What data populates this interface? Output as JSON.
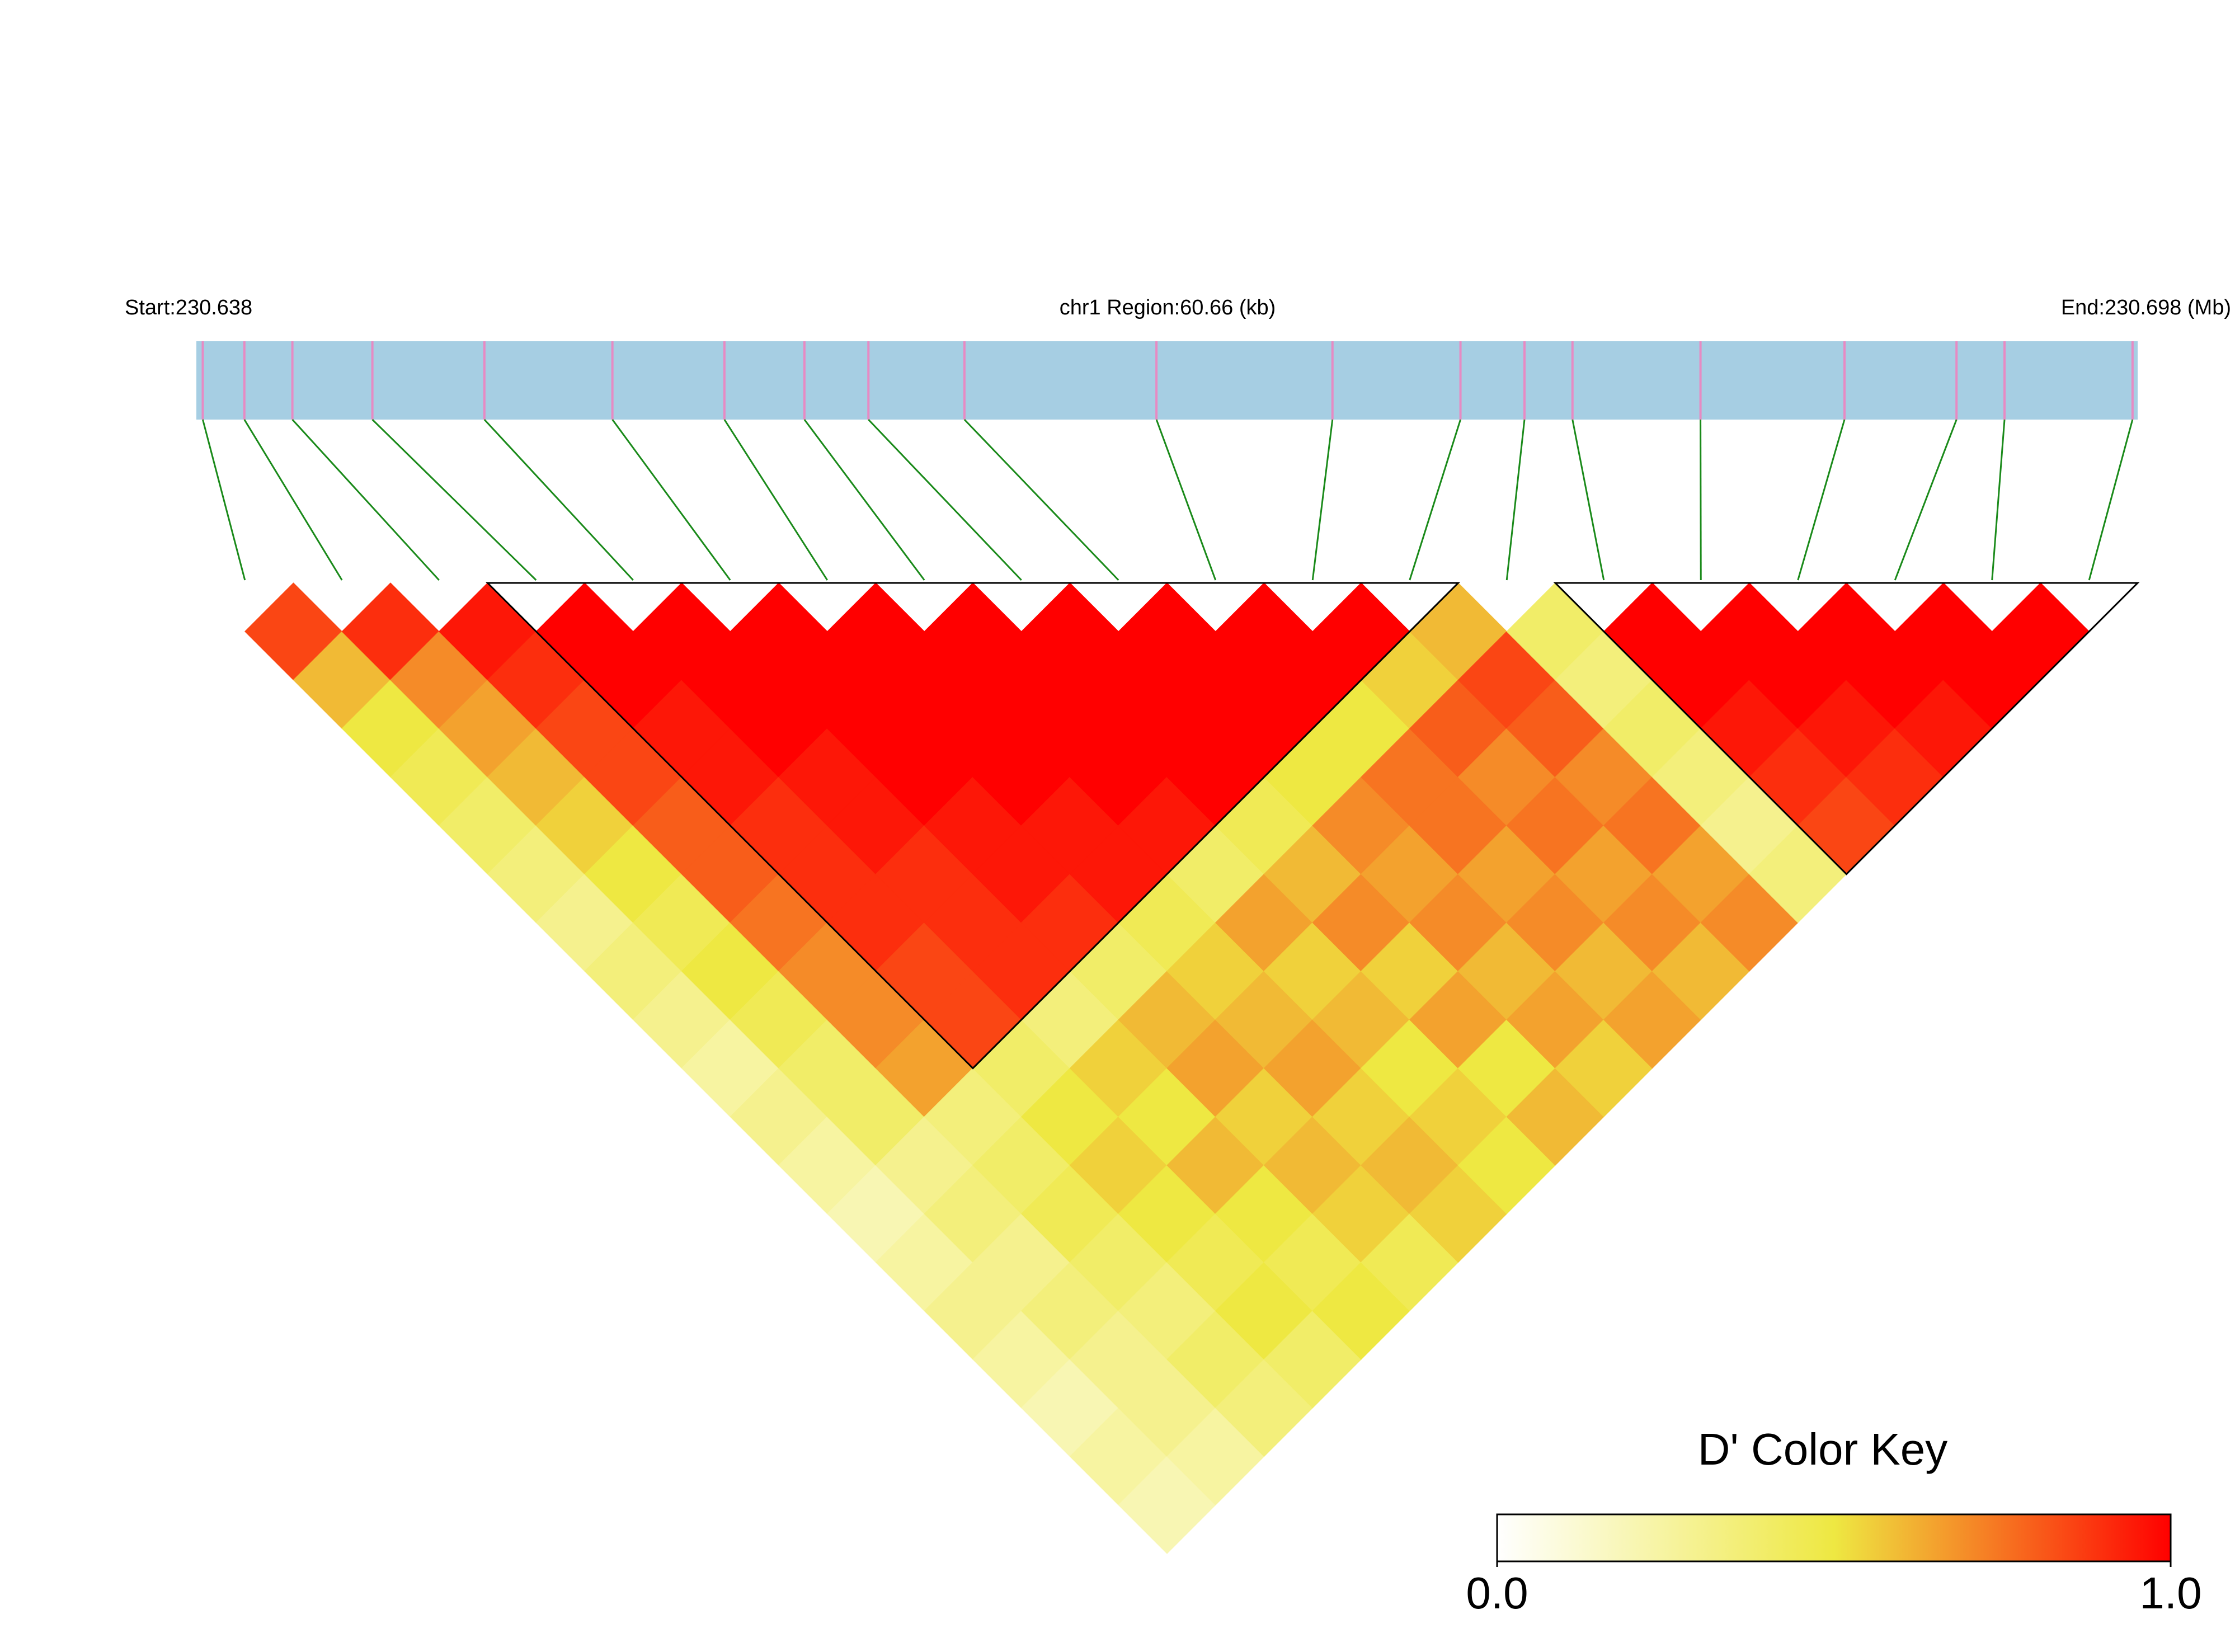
{
  "chart_data": {
    "type": "ld_heatmap",
    "start_label": "Start:230.638",
    "region_label": "chr1 Region:60.66 (kb)",
    "end_label": "End:230.698 (Mb)",
    "xlim": [
      0,
      60.66
    ],
    "snp_positions": [
      0.2,
      1.5,
      3.0,
      5.5,
      9.0,
      13.0,
      16.5,
      19.0,
      21.0,
      24.0,
      30.0,
      35.5,
      39.5,
      41.5,
      43.0,
      47.0,
      51.5,
      55.0,
      56.5,
      60.5
    ],
    "bar_color": "#a6cee3",
    "snp_color": "#e78ac3",
    "connector_color": "#1a8a1a",
    "values": [
      [
        0.85
      ],
      [
        0.6,
        0.9
      ],
      [
        0.5,
        0.7,
        0.95
      ],
      [
        0.45,
        0.65,
        0.9,
        1
      ],
      [
        0.4,
        0.6,
        0.85,
        1,
        1
      ],
      [
        0.35,
        0.55,
        0.85,
        0.95,
        1,
        1
      ],
      [
        0.3,
        0.5,
        0.8,
        0.95,
        1,
        1,
        1
      ],
      [
        0.35,
        0.45,
        0.8,
        0.9,
        0.95,
        1,
        1,
        1
      ],
      [
        0.3,
        0.5,
        0.75,
        0.9,
        0.95,
        1,
        1,
        1,
        1
      ],
      [
        0.25,
        0.45,
        0.7,
        0.9,
        0.9,
        0.95,
        1,
        1,
        1,
        1
      ],
      [
        0.3,
        0.4,
        0.7,
        0.85,
        0.9,
        0.95,
        0.95,
        1,
        1,
        1,
        1
      ],
      [
        0.25,
        0.4,
        0.65,
        0.85,
        0.9,
        0.9,
        0.95,
        0.95,
        1,
        1,
        1,
        1
      ],
      [
        0.2,
        0.3,
        0.35,
        0.4,
        0.35,
        0.4,
        0.45,
        0.4,
        0.45,
        0.5,
        0.5,
        0.55,
        0.6
      ],
      [
        0.25,
        0.35,
        0.4,
        0.5,
        0.55,
        0.6,
        0.55,
        0.65,
        0.6,
        0.7,
        0.75,
        0.8,
        0.85,
        0.4
      ],
      [
        0.3,
        0.3,
        0.45,
        0.55,
        0.5,
        0.65,
        0.6,
        0.55,
        0.7,
        0.65,
        0.75,
        0.7,
        0.8,
        0.35,
        1
      ],
      [
        0.25,
        0.35,
        0.4,
        0.5,
        0.6,
        0.55,
        0.65,
        0.6,
        0.55,
        0.7,
        0.65,
        0.75,
        0.7,
        0.4,
        1,
        1
      ],
      [
        0.2,
        0.3,
        0.35,
        0.45,
        0.5,
        0.6,
        0.55,
        0.5,
        0.65,
        0.6,
        0.7,
        0.65,
        0.75,
        0.35,
        0.95,
        1,
        1
      ],
      [
        0.25,
        0.3,
        0.4,
        0.5,
        0.45,
        0.55,
        0.6,
        0.55,
        0.5,
        0.65,
        0.6,
        0.7,
        0.65,
        0.3,
        0.9,
        0.95,
        1,
        1
      ],
      [
        0.2,
        0.25,
        0.35,
        0.4,
        0.5,
        0.45,
        0.55,
        0.5,
        0.6,
        0.55,
        0.65,
        0.6,
        0.7,
        0.35,
        0.85,
        0.9,
        0.95,
        1,
        1
      ]
    ],
    "blocks": [
      [
        3,
        12
      ],
      [
        14,
        19
      ]
    ],
    "color_key": {
      "title": "D' Color Key",
      "colors": [
        "#ffffff",
        "#eee842",
        "#ff0000"
      ],
      "lim": [
        0,
        1
      ],
      "ticks": [
        {
          "value": 0,
          "label": "0.0"
        },
        {
          "value": 1,
          "label": "1.0"
        }
      ]
    }
  }
}
